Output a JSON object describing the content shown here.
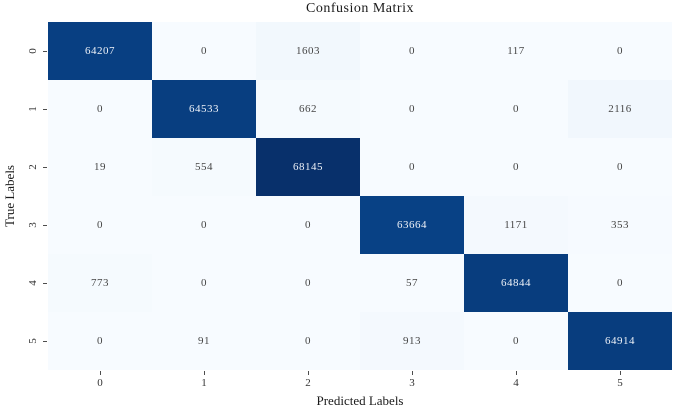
{
  "figure": {
    "title": "Confusion Matrix",
    "xlabel": "Predicted Labels",
    "ylabel": "True Labels"
  },
  "chart_data": {
    "type": "heatmap",
    "title": "Confusion Matrix",
    "xlabel": "Predicted Labels",
    "ylabel": "True Labels",
    "x_tick_labels": [
      "0",
      "1",
      "2",
      "3",
      "4",
      "5"
    ],
    "y_tick_labels": [
      "0",
      "1",
      "2",
      "3",
      "4",
      "5"
    ],
    "matrix": [
      [
        64207,
        0,
        1603,
        0,
        117,
        0
      ],
      [
        0,
        64533,
        662,
        0,
        0,
        2116
      ],
      [
        19,
        554,
        68145,
        0,
        0,
        0
      ],
      [
        0,
        0,
        0,
        63664,
        1171,
        353
      ],
      [
        773,
        0,
        0,
        57,
        64844,
        0
      ],
      [
        0,
        91,
        0,
        913,
        0,
        64914
      ]
    ],
    "vmin": 0,
    "vmax": 68145,
    "colormap": "Blues",
    "colormap_stops": [
      "#f7fbff",
      "#deebf7",
      "#c6dbef",
      "#9ecae1",
      "#6baed6",
      "#4292c6",
      "#2171b5",
      "#08519c",
      "#08306b"
    ],
    "annotation_color_dark_cells": "#eef2f8",
    "annotation_color_light_cells": "#454545",
    "grid": false,
    "legend": "none"
  }
}
